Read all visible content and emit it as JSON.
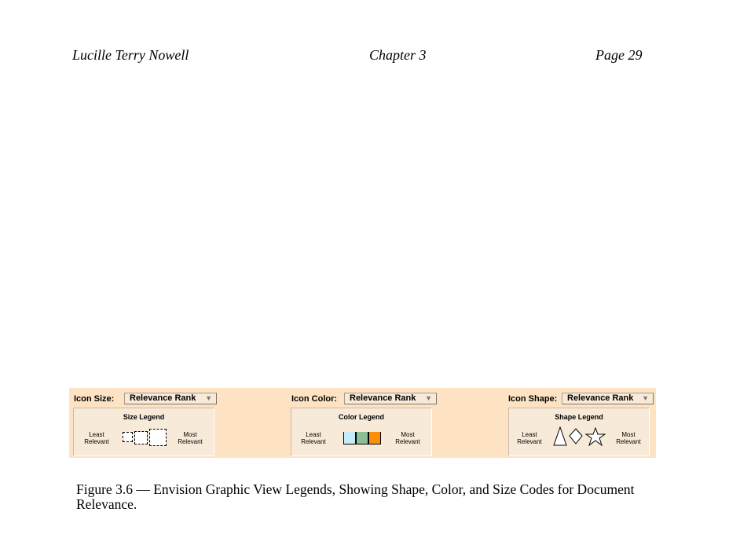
{
  "header": {
    "author": "Lucille Terry Nowell",
    "chapter": "Chapter 3",
    "page": "Page 29"
  },
  "figure": {
    "size": {
      "label": "Icon Size:",
      "dropdown": "Relevance Rank",
      "legend_title": "Size Legend",
      "least": "Least Relevant",
      "most": "Most Relevant"
    },
    "color": {
      "label": "Icon Color:",
      "dropdown": "Relevance Rank",
      "legend_title": "Color Legend",
      "least": "Least Relevant",
      "most": "Most Relevant",
      "swatches": [
        "#c6ecfb",
        "#8bbf98",
        "#fb8f08"
      ]
    },
    "shape": {
      "label": "Icon Shape:",
      "dropdown": "Relevance Rank",
      "legend_title": "Shape Legend",
      "least": "Least Relevant",
      "most": "Most Relevant",
      "shapes": [
        "triangle",
        "diamond",
        "star"
      ]
    }
  },
  "caption": "Figure 3.6 — Envision Graphic View Legends, Showing Shape, Color, and Size Codes for Document Relevance."
}
